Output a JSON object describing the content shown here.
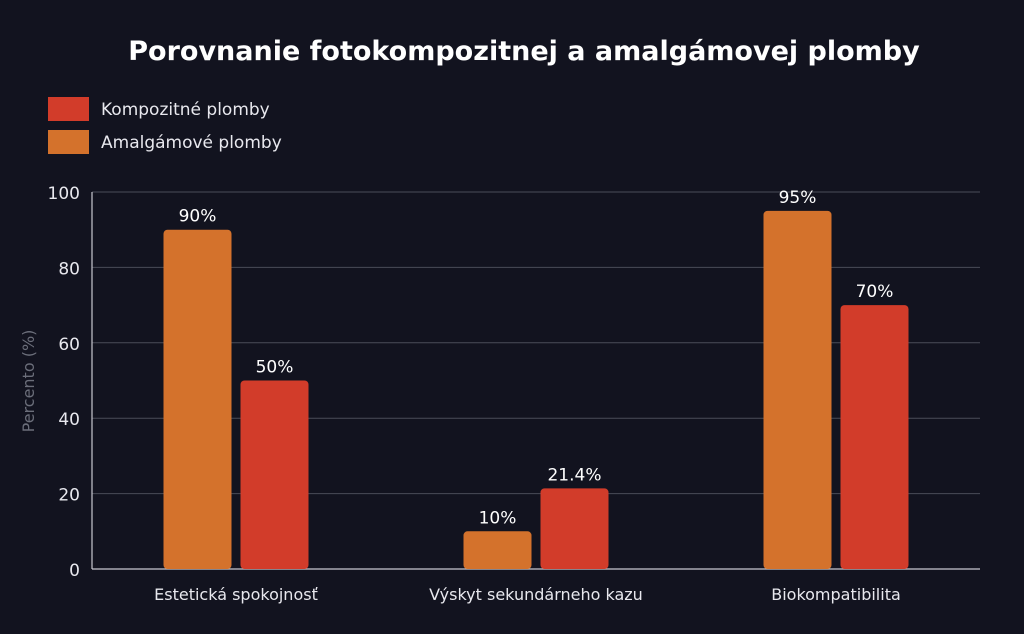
{
  "chart_data": {
    "type": "bar",
    "title": "Porovnanie fotokompozitnej a amalgámovej plomby",
    "xlabel": "",
    "ylabel": "Percento (%)",
    "ylim": [
      0,
      100
    ],
    "yticks": [
      "0",
      "20",
      "40",
      "60",
      "80",
      "100"
    ],
    "grid": true,
    "legend_placement": "top-left",
    "categories": [
      "Estetická spokojnosť",
      "Výskyt sekundárneho kazu",
      "Biokompatibilita"
    ],
    "series": [
      {
        "name": "Kompozitné plomby",
        "color": "#d23c2a",
        "values": [
          50,
          21.4,
          70
        ],
        "labels": [
          "50%",
          "21.4%",
          "70%"
        ]
      },
      {
        "name": "Amalgámové plomby",
        "color": "#d4722c",
        "values": [
          90,
          10,
          95
        ],
        "labels": [
          "90%",
          "10%",
          "95%"
        ]
      }
    ],
    "bar_order_in_group": [
      "Amalgámové plomby",
      "Kompozitné plomby"
    ]
  }
}
